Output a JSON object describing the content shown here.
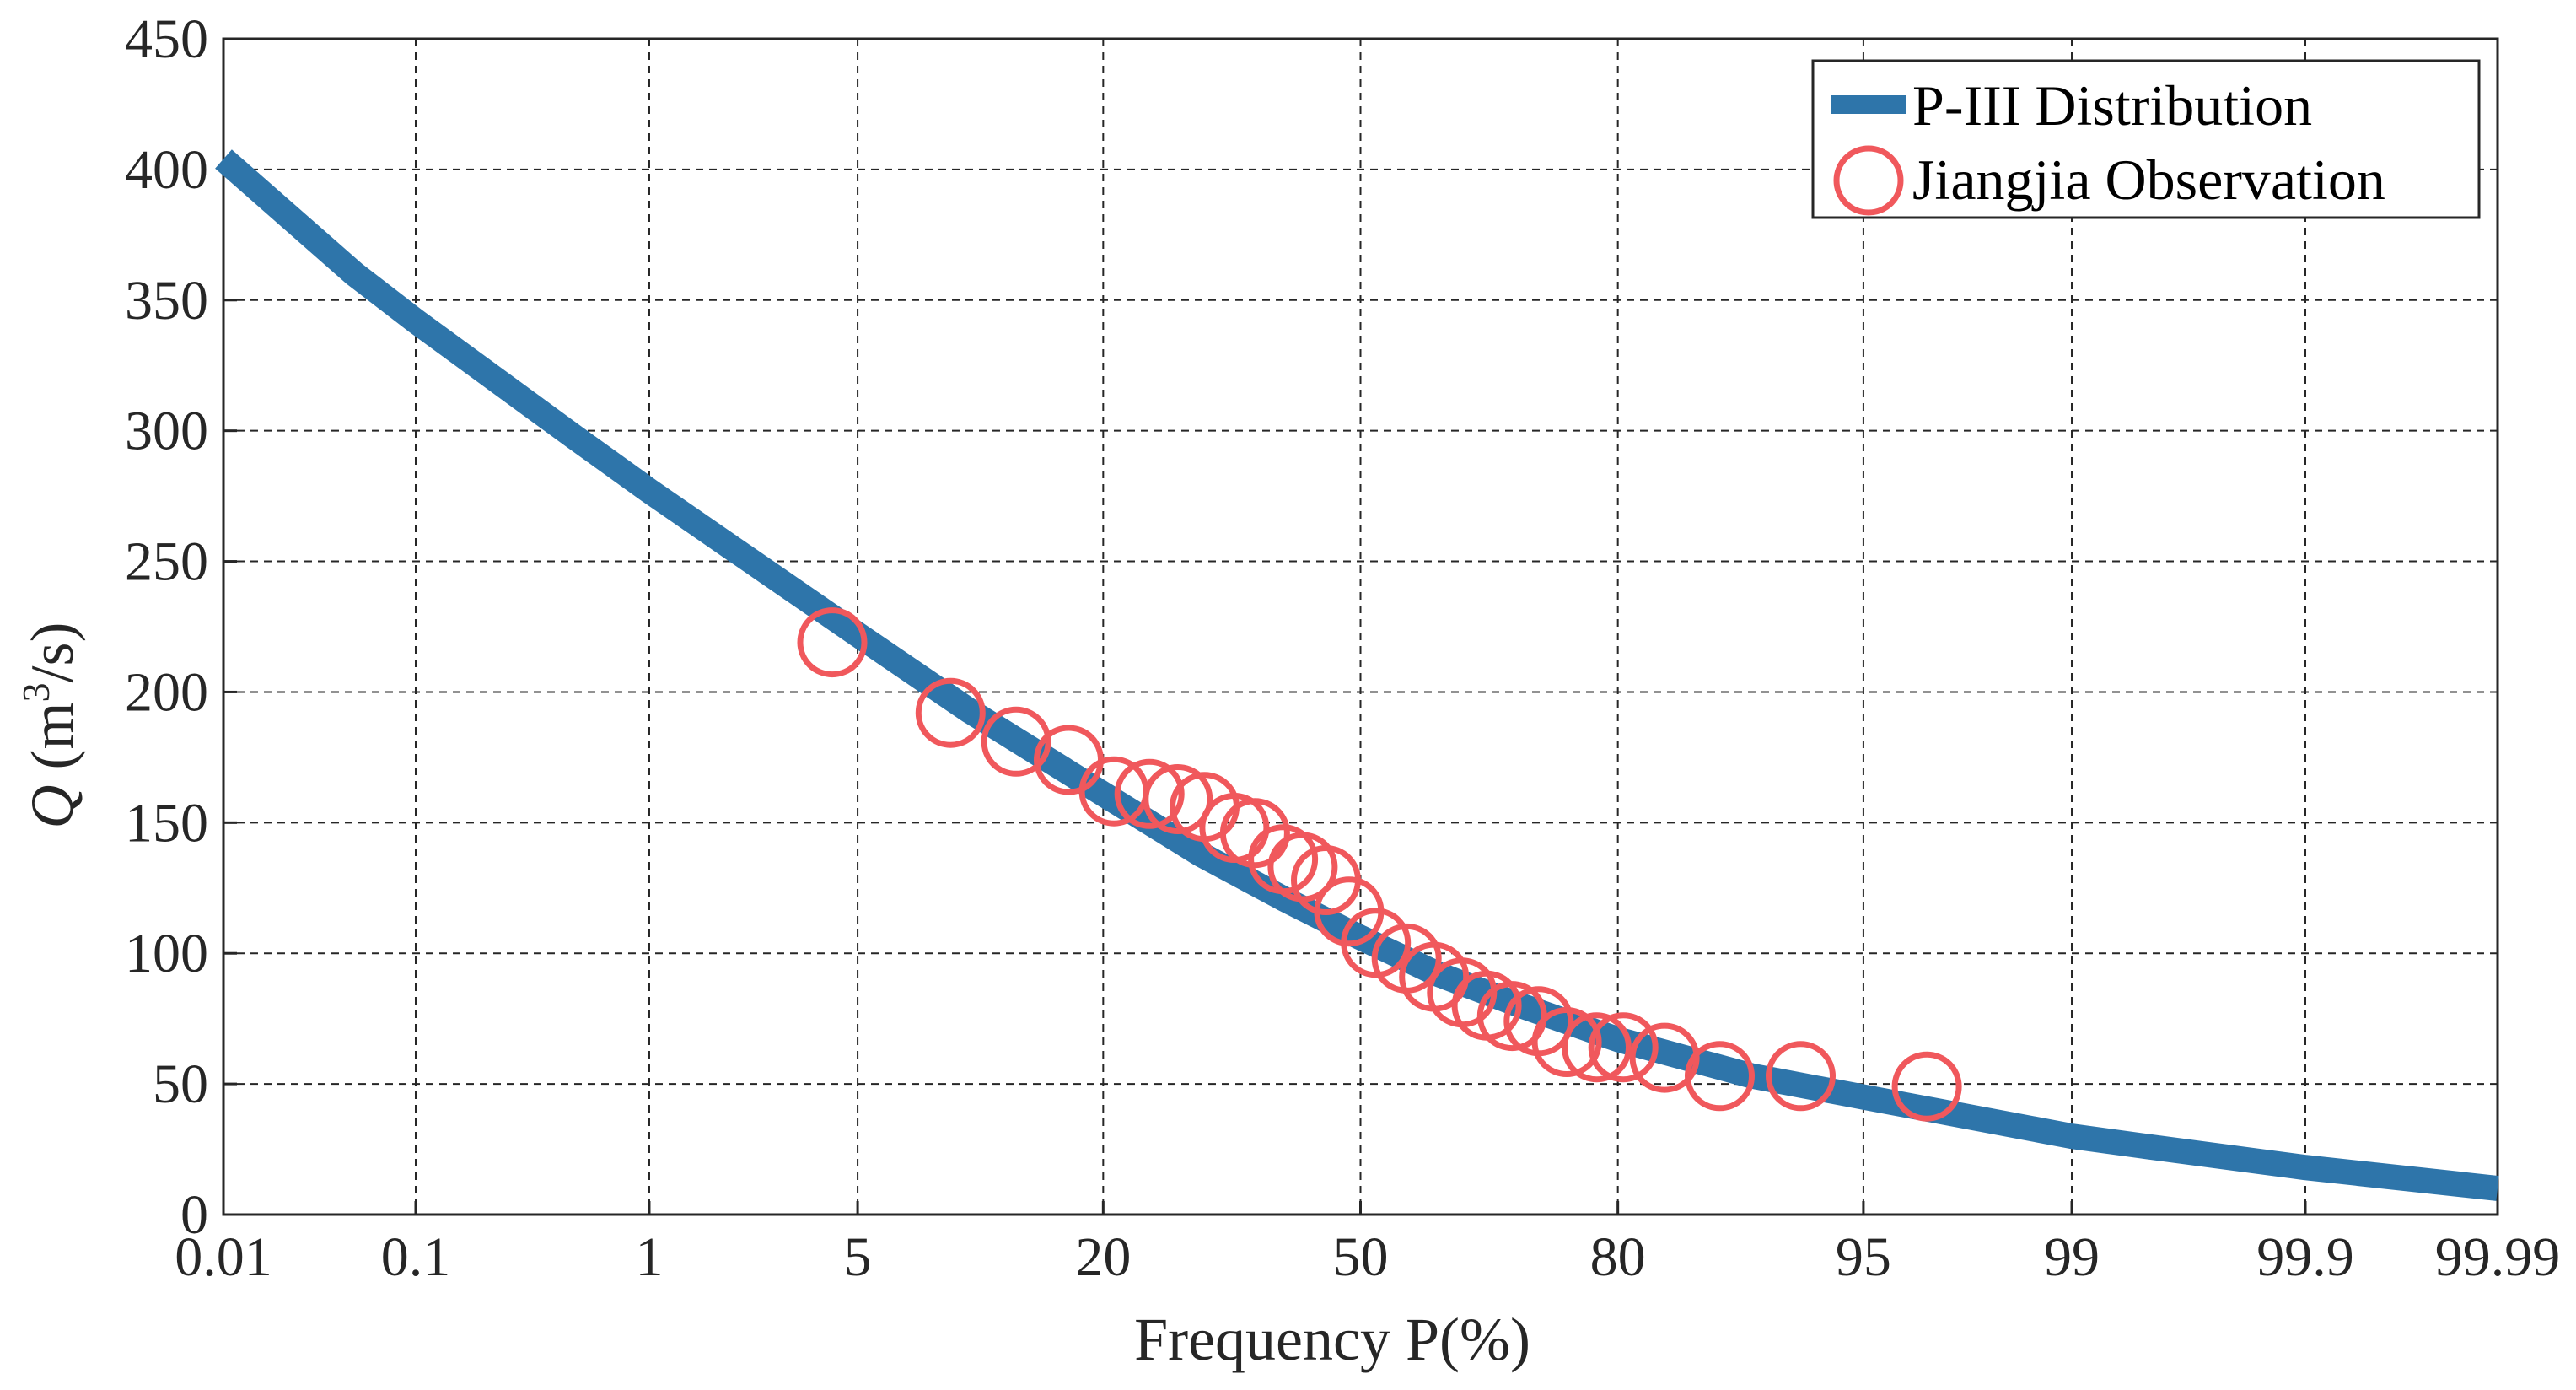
{
  "chart_data": {
    "type": "line",
    "xlabel": "Frequency P(%)",
    "ylabel_italic": "Q",
    "ylabel_unit_prefix": "(m",
    "ylabel_unit_sup": "3",
    "ylabel_unit_suffix": "/s)",
    "x_scale": "probability",
    "x_ticks": [
      "0.01",
      "0.1",
      "1",
      "5",
      "20",
      "50",
      "80",
      "95",
      "99",
      "99.9",
      "99.99"
    ],
    "x_tick_values": [
      0.01,
      0.1,
      1,
      5,
      20,
      50,
      80,
      95,
      99,
      99.9,
      99.99
    ],
    "y_ticks": [
      "0",
      "50",
      "100",
      "150",
      "200",
      "250",
      "300",
      "350",
      "400",
      "450"
    ],
    "ylim": [
      0,
      450
    ],
    "grid": true,
    "legend_position": "top-right",
    "series": [
      {
        "name": "P-III Distribution",
        "kind": "line",
        "color": "#2e75aa",
        "x": [
          0.01,
          0.05,
          0.1,
          0.5,
          1,
          2,
          5,
          10,
          20,
          30,
          40,
          50,
          60,
          70,
          80,
          90,
          95,
          99,
          99.5,
          99.9,
          99.99
        ],
        "y": [
          404,
          360,
          342,
          298,
          277,
          255,
          222,
          193,
          161,
          138,
          121,
          106,
          92,
          80,
          67,
          53,
          45,
          30,
          26,
          18,
          10
        ]
      },
      {
        "name": "Jiangjia Observation",
        "kind": "scatter",
        "color": "#f0585c",
        "x": [
          4.2,
          9,
          13,
          17,
          21,
          24.5,
          27.5,
          30.5,
          34,
          36.5,
          40,
          42.5,
          45.5,
          48.5,
          52,
          56,
          59.5,
          63,
          66,
          69,
          72,
          75,
          78,
          80.5,
          84,
          88,
          92.5,
          96.8
        ],
        "y": [
          219,
          192,
          181,
          174,
          162,
          161,
          159,
          156,
          148,
          146,
          136,
          133,
          128,
          116,
          104,
          98,
          91,
          85,
          80,
          76,
          74,
          66,
          64,
          64,
          60,
          53,
          53,
          49
        ]
      }
    ]
  }
}
